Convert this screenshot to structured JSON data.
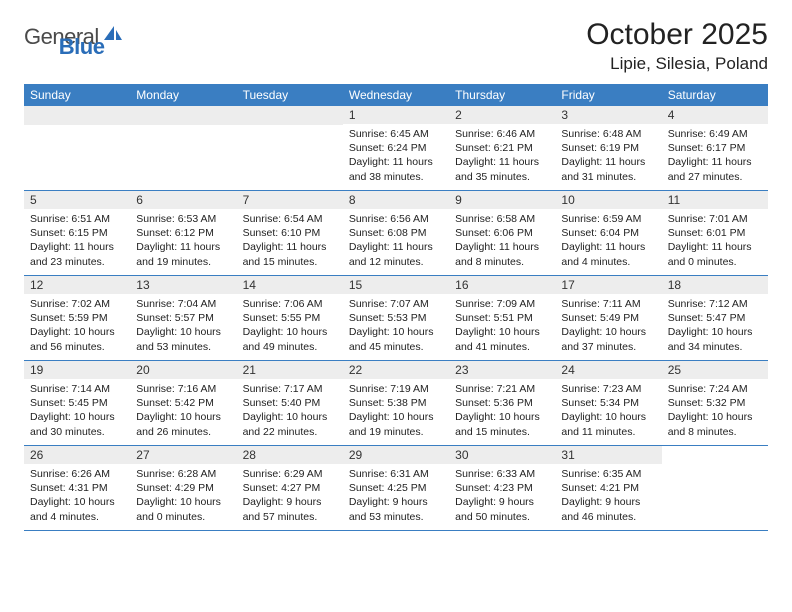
{
  "logo": {
    "textA": "General",
    "textB": "Blue"
  },
  "title": "October 2025",
  "location": "Lipie, Silesia, Poland",
  "weekdays": [
    "Sunday",
    "Monday",
    "Tuesday",
    "Wednesday",
    "Thursday",
    "Friday",
    "Saturday"
  ],
  "colors": {
    "header_bg": "#3a7ec2",
    "header_text": "#ffffff",
    "daynum_bg": "#ededed",
    "border": "#3a7ec2",
    "logo_gray": "#4a4a4a",
    "logo_blue": "#2a6db8"
  },
  "leadingBlanks": 3,
  "days": [
    {
      "n": "1",
      "sr": "6:45 AM",
      "ss": "6:24 PM",
      "dl": "11 hours and 38 minutes."
    },
    {
      "n": "2",
      "sr": "6:46 AM",
      "ss": "6:21 PM",
      "dl": "11 hours and 35 minutes."
    },
    {
      "n": "3",
      "sr": "6:48 AM",
      "ss": "6:19 PM",
      "dl": "11 hours and 31 minutes."
    },
    {
      "n": "4",
      "sr": "6:49 AM",
      "ss": "6:17 PM",
      "dl": "11 hours and 27 minutes."
    },
    {
      "n": "5",
      "sr": "6:51 AM",
      "ss": "6:15 PM",
      "dl": "11 hours and 23 minutes."
    },
    {
      "n": "6",
      "sr": "6:53 AM",
      "ss": "6:12 PM",
      "dl": "11 hours and 19 minutes."
    },
    {
      "n": "7",
      "sr": "6:54 AM",
      "ss": "6:10 PM",
      "dl": "11 hours and 15 minutes."
    },
    {
      "n": "8",
      "sr": "6:56 AM",
      "ss": "6:08 PM",
      "dl": "11 hours and 12 minutes."
    },
    {
      "n": "9",
      "sr": "6:58 AM",
      "ss": "6:06 PM",
      "dl": "11 hours and 8 minutes."
    },
    {
      "n": "10",
      "sr": "6:59 AM",
      "ss": "6:04 PM",
      "dl": "11 hours and 4 minutes."
    },
    {
      "n": "11",
      "sr": "7:01 AM",
      "ss": "6:01 PM",
      "dl": "11 hours and 0 minutes."
    },
    {
      "n": "12",
      "sr": "7:02 AM",
      "ss": "5:59 PM",
      "dl": "10 hours and 56 minutes."
    },
    {
      "n": "13",
      "sr": "7:04 AM",
      "ss": "5:57 PM",
      "dl": "10 hours and 53 minutes."
    },
    {
      "n": "14",
      "sr": "7:06 AM",
      "ss": "5:55 PM",
      "dl": "10 hours and 49 minutes."
    },
    {
      "n": "15",
      "sr": "7:07 AM",
      "ss": "5:53 PM",
      "dl": "10 hours and 45 minutes."
    },
    {
      "n": "16",
      "sr": "7:09 AM",
      "ss": "5:51 PM",
      "dl": "10 hours and 41 minutes."
    },
    {
      "n": "17",
      "sr": "7:11 AM",
      "ss": "5:49 PM",
      "dl": "10 hours and 37 minutes."
    },
    {
      "n": "18",
      "sr": "7:12 AM",
      "ss": "5:47 PM",
      "dl": "10 hours and 34 minutes."
    },
    {
      "n": "19",
      "sr": "7:14 AM",
      "ss": "5:45 PM",
      "dl": "10 hours and 30 minutes."
    },
    {
      "n": "20",
      "sr": "7:16 AM",
      "ss": "5:42 PM",
      "dl": "10 hours and 26 minutes."
    },
    {
      "n": "21",
      "sr": "7:17 AM",
      "ss": "5:40 PM",
      "dl": "10 hours and 22 minutes."
    },
    {
      "n": "22",
      "sr": "7:19 AM",
      "ss": "5:38 PM",
      "dl": "10 hours and 19 minutes."
    },
    {
      "n": "23",
      "sr": "7:21 AM",
      "ss": "5:36 PM",
      "dl": "10 hours and 15 minutes."
    },
    {
      "n": "24",
      "sr": "7:23 AM",
      "ss": "5:34 PM",
      "dl": "10 hours and 11 minutes."
    },
    {
      "n": "25",
      "sr": "7:24 AM",
      "ss": "5:32 PM",
      "dl": "10 hours and 8 minutes."
    },
    {
      "n": "26",
      "sr": "6:26 AM",
      "ss": "4:31 PM",
      "dl": "10 hours and 4 minutes."
    },
    {
      "n": "27",
      "sr": "6:28 AM",
      "ss": "4:29 PM",
      "dl": "10 hours and 0 minutes."
    },
    {
      "n": "28",
      "sr": "6:29 AM",
      "ss": "4:27 PM",
      "dl": "9 hours and 57 minutes."
    },
    {
      "n": "29",
      "sr": "6:31 AM",
      "ss": "4:25 PM",
      "dl": "9 hours and 53 minutes."
    },
    {
      "n": "30",
      "sr": "6:33 AM",
      "ss": "4:23 PM",
      "dl": "9 hours and 50 minutes."
    },
    {
      "n": "31",
      "sr": "6:35 AM",
      "ss": "4:21 PM",
      "dl": "9 hours and 46 minutes."
    }
  ],
  "labels": {
    "sunrise": "Sunrise:",
    "sunset": "Sunset:",
    "daylight": "Daylight:"
  }
}
